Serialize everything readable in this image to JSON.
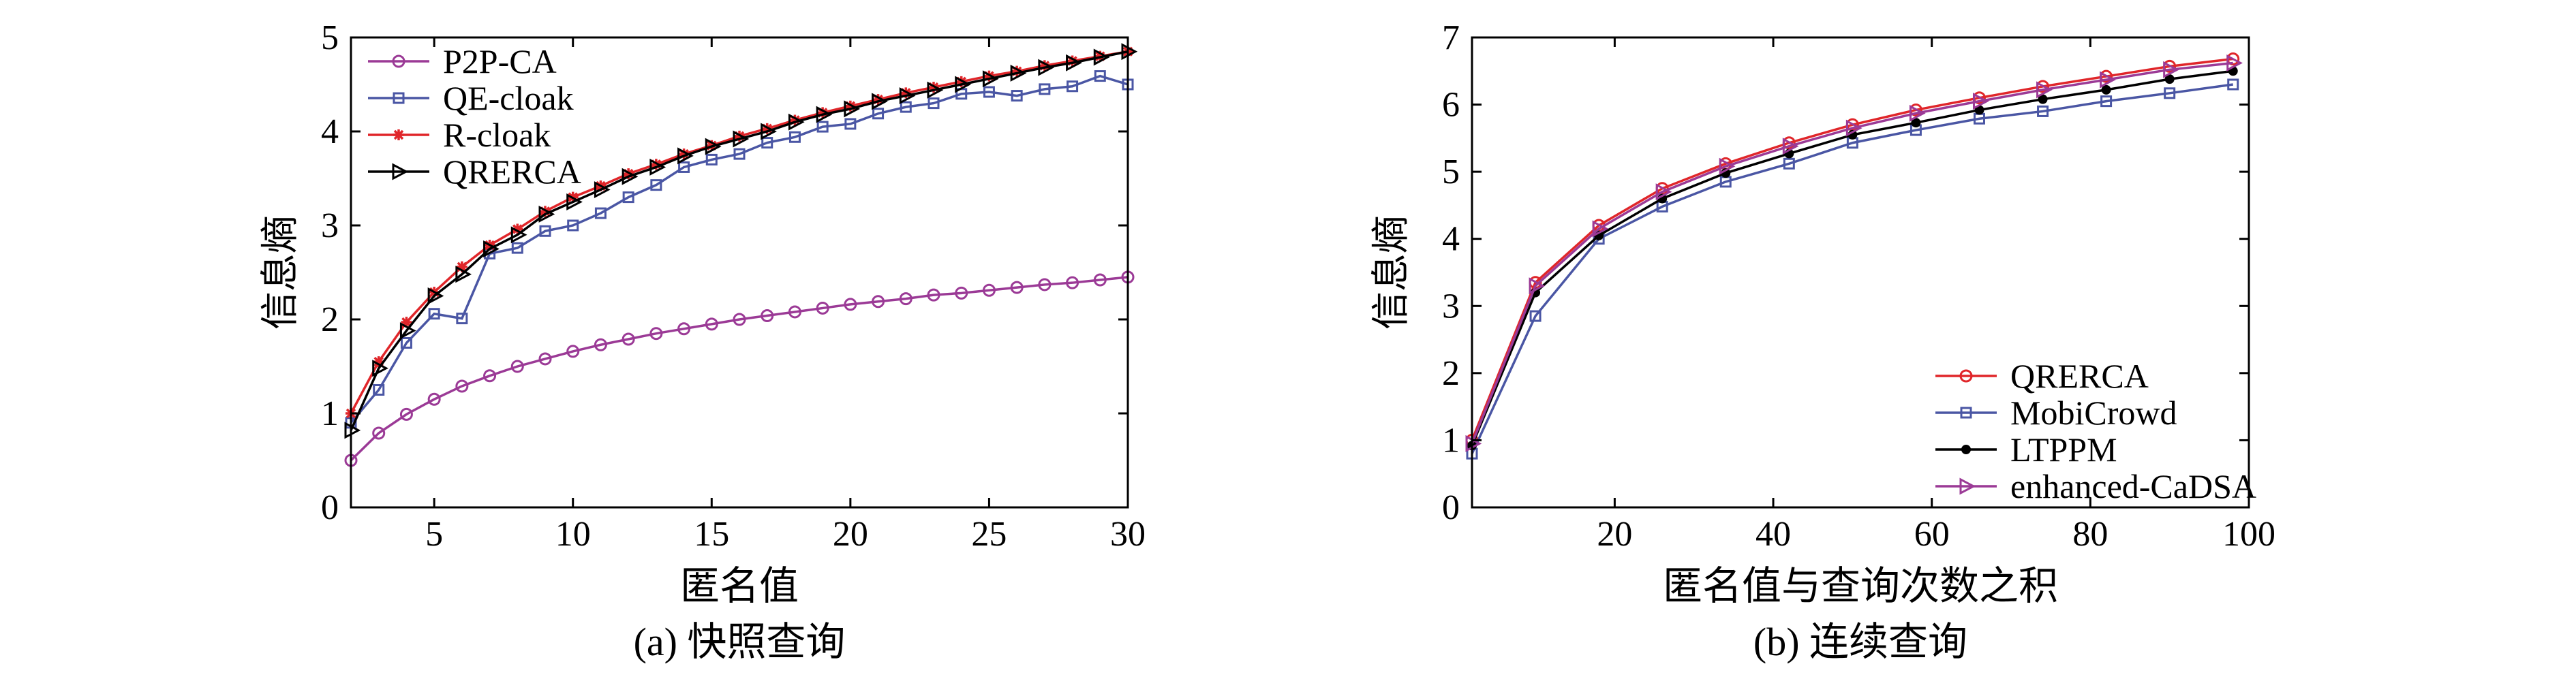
{
  "charts": [
    {
      "id": "a",
      "caption": "(a)  快照查询",
      "chart_data": {
        "type": "line",
        "title": "",
        "xlabel": "匿名值",
        "ylabel": "信息熵",
        "xlim": [
          2,
          30
        ],
        "ylim": [
          0,
          5
        ],
        "xticks": [
          5,
          10,
          15,
          20,
          25,
          30
        ],
        "yticks": [
          0,
          1,
          2,
          3,
          4,
          5
        ],
        "legend_position": "top-left",
        "series": [
          {
            "name": "P2P-CA",
            "color": "#9b3a96",
            "marker": "circle",
            "x": [
              2,
              3,
              4,
              5,
              6,
              7,
              8,
              9,
              10,
              11,
              12,
              13,
              14,
              15,
              16,
              17,
              18,
              19,
              20,
              21,
              22,
              23,
              24,
              25,
              26,
              27,
              28,
              29,
              30
            ],
            "values": [
              0.5,
              0.79,
              0.99,
              1.15,
              1.29,
              1.4,
              1.5,
              1.58,
              1.66,
              1.73,
              1.79,
              1.85,
              1.9,
              1.95,
              2.0,
              2.04,
              2.08,
              2.12,
              2.16,
              2.19,
              2.22,
              2.26,
              2.28,
              2.31,
              2.34,
              2.37,
              2.39,
              2.42,
              2.45
            ]
          },
          {
            "name": "QE-cloak",
            "color": "#4a56a4",
            "marker": "square",
            "x": [
              2,
              3,
              4,
              5,
              6,
              7,
              8,
              9,
              10,
              11,
              12,
              13,
              14,
              15,
              16,
              17,
              18,
              19,
              20,
              21,
              22,
              23,
              24,
              25,
              26,
              27,
              28,
              29,
              30
            ],
            "values": [
              0.9,
              1.25,
              1.75,
              2.06,
              2.01,
              2.7,
              2.76,
              2.94,
              3.0,
              3.13,
              3.3,
              3.43,
              3.62,
              3.7,
              3.76,
              3.88,
              3.94,
              4.05,
              4.08,
              4.19,
              4.26,
              4.3,
              4.4,
              4.42,
              4.38,
              4.45,
              4.48,
              4.59,
              4.5
            ]
          },
          {
            "name": "R-cloak",
            "color": "#e0262a",
            "marker": "star",
            "x": [
              2,
              3,
              4,
              5,
              6,
              7,
              8,
              9,
              10,
              11,
              12,
              13,
              14,
              15,
              16,
              17,
              18,
              19,
              20,
              21,
              22,
              23,
              24,
              25,
              26,
              27,
              28,
              29,
              30
            ],
            "values": [
              1.0,
              1.55,
              1.97,
              2.29,
              2.56,
              2.79,
              2.96,
              3.15,
              3.3,
              3.42,
              3.55,
              3.65,
              3.76,
              3.85,
              3.95,
              4.03,
              4.12,
              4.2,
              4.27,
              4.34,
              4.41,
              4.47,
              4.53,
              4.59,
              4.64,
              4.7,
              4.75,
              4.8,
              4.85
            ]
          },
          {
            "name": "QRERCA",
            "color": "#000000",
            "marker": "triangle-right",
            "x": [
              2,
              3,
              4,
              5,
              6,
              7,
              8,
              9,
              10,
              11,
              12,
              13,
              14,
              15,
              16,
              17,
              18,
              19,
              20,
              21,
              22,
              23,
              24,
              25,
              26,
              27,
              28,
              29,
              30
            ],
            "values": [
              0.82,
              1.48,
              1.88,
              2.25,
              2.48,
              2.75,
              2.9,
              3.12,
              3.25,
              3.38,
              3.52,
              3.62,
              3.74,
              3.84,
              3.92,
              4.0,
              4.1,
              4.18,
              4.24,
              4.32,
              4.38,
              4.44,
              4.5,
              4.56,
              4.62,
              4.68,
              4.73,
              4.79,
              4.85
            ]
          }
        ]
      }
    },
    {
      "id": "b",
      "caption": "(b)  连续查询",
      "chart_data": {
        "type": "line",
        "title": "",
        "xlabel": "匿名值与查询次数之积",
        "ylabel": "信息熵",
        "xlim": [
          2,
          100
        ],
        "ylim": [
          0,
          7
        ],
        "xticks": [
          20,
          40,
          60,
          80,
          100
        ],
        "yticks": [
          0,
          1,
          2,
          3,
          4,
          5,
          6,
          7
        ],
        "legend_position": "bottom-right",
        "series": [
          {
            "name": "QRERCA",
            "color": "#e0262a",
            "marker": "circle",
            "x": [
              2,
              10,
              18,
              26,
              34,
              42,
              50,
              58,
              66,
              74,
              82,
              90,
              98
            ],
            "values": [
              1.0,
              3.35,
              4.2,
              4.75,
              5.12,
              5.43,
              5.7,
              5.92,
              6.1,
              6.27,
              6.42,
              6.57,
              6.68
            ]
          },
          {
            "name": "MobiCrowd",
            "color": "#4a56a4",
            "marker": "square",
            "x": [
              2,
              10,
              18,
              26,
              34,
              42,
              50,
              58,
              66,
              74,
              82,
              90,
              98
            ],
            "values": [
              0.8,
              2.85,
              4.0,
              4.48,
              4.85,
              5.12,
              5.43,
              5.62,
              5.79,
              5.9,
              6.05,
              6.17,
              6.3
            ]
          },
          {
            "name": "LTPPM",
            "color": "#000000",
            "marker": "dot",
            "x": [
              2,
              10,
              18,
              26,
              34,
              42,
              50,
              58,
              66,
              74,
              82,
              90,
              98
            ],
            "values": [
              0.92,
              3.2,
              4.05,
              4.6,
              4.98,
              5.27,
              5.55,
              5.73,
              5.92,
              6.08,
              6.22,
              6.38,
              6.5
            ]
          },
          {
            "name": "enhanced-CaDSA",
            "color": "#9b3a96",
            "marker": "triangle-right",
            "x": [
              2,
              10,
              18,
              26,
              34,
              42,
              50,
              58,
              66,
              74,
              82,
              90,
              98
            ],
            "values": [
              0.95,
              3.3,
              4.15,
              4.7,
              5.08,
              5.38,
              5.65,
              5.87,
              6.05,
              6.22,
              6.37,
              6.52,
              6.62
            ]
          }
        ]
      }
    }
  ]
}
